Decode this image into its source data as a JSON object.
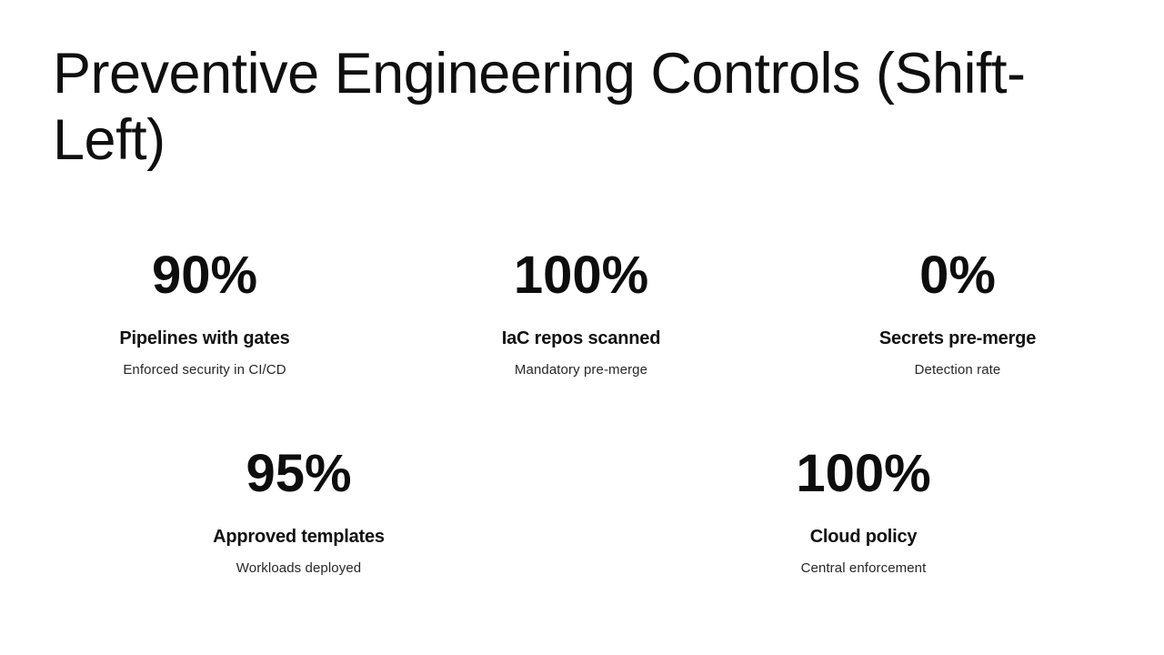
{
  "page": {
    "background_color": "#ffffff",
    "text_color": "#0f0f0f"
  },
  "title": {
    "text": "Preventive Engineering Controls (Shift-Left)",
    "lines": [
      "Preventive Engineering Controls (Shift-",
      "Left)"
    ]
  },
  "stats": [
    {
      "value": "90%",
      "label": "Pipelines with gates",
      "description": "Enforced security in CI/CD"
    },
    {
      "value": "100%",
      "label": "IaC repos scanned",
      "description": "Mandatory pre-merge"
    },
    {
      "value": "0%",
      "label": "Secrets pre-merge",
      "description": "Detection rate"
    },
    {
      "value": "95%",
      "label": "Approved templates",
      "description": "Workloads deployed"
    },
    {
      "value": "100%",
      "label": "Cloud policy",
      "description": "Central enforcement"
    }
  ]
}
